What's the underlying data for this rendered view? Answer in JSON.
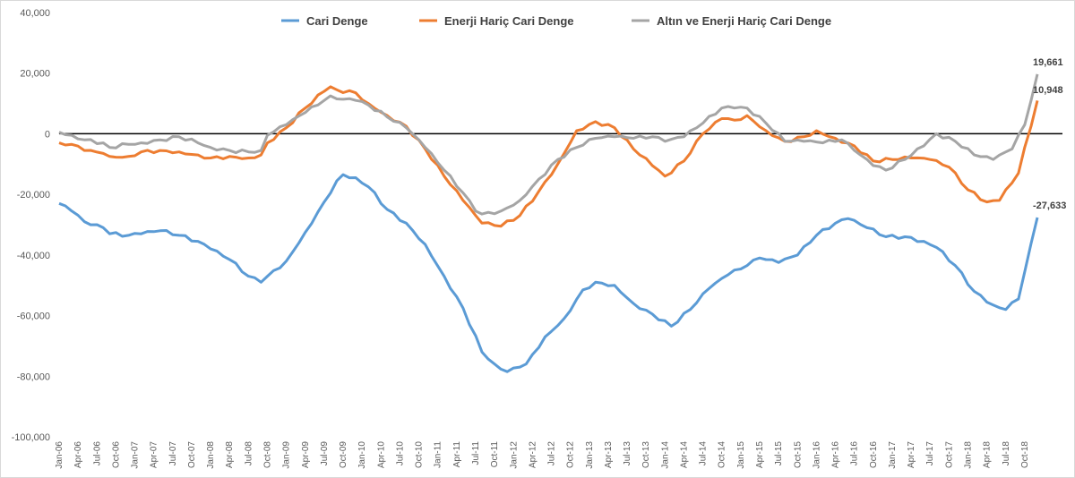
{
  "chart_data": {
    "type": "line",
    "title": "",
    "xlabel": "",
    "ylabel": "",
    "ylim": [
      -100000,
      40000
    ],
    "yticks": [
      40000,
      20000,
      0,
      -20000,
      -40000,
      -60000,
      -80000,
      -100000
    ],
    "ytick_labels": [
      "40,000",
      "20,000",
      "0",
      "-20,000",
      "-40,000",
      "-60,000",
      "-80,000",
      "-100,000"
    ],
    "x_start": "2006-01",
    "x_end": "2018-12",
    "xtick_labels": [
      "Jan-06",
      "Apr-06",
      "Jul-06",
      "Oct-06",
      "Jan-07",
      "Apr-07",
      "Jul-07",
      "Oct-07",
      "Jan-08",
      "Apr-08",
      "Jul-08",
      "Oct-08",
      "Jan-09",
      "Apr-09",
      "Jul-09",
      "Oct-09",
      "Jan-10",
      "Apr-10",
      "Jul-10",
      "Oct-10",
      "Jan-11",
      "Apr-11",
      "Jul-11",
      "Oct-11",
      "Jan-12",
      "Apr-12",
      "Jul-12",
      "Oct-12",
      "Jan-13",
      "Apr-13",
      "Jul-13",
      "Oct-13",
      "Jan-14",
      "Apr-14",
      "Jul-14",
      "Oct-14",
      "Jan-15",
      "Apr-15",
      "Jul-15",
      "Oct-15",
      "Jan-16",
      "Apr-16",
      "Jul-16",
      "Oct-16",
      "Jan-17",
      "Apr-17",
      "Jul-17",
      "Oct-17",
      "Jan-18",
      "Apr-18",
      "Jul-18",
      "Oct-18"
    ],
    "legend_position": "top",
    "grid": false,
    "series": [
      {
        "name": "Cari Denge",
        "color": "#5b9bd5",
        "anchors": [
          [
            "2006-01",
            -23000
          ],
          [
            "2006-03",
            -25500
          ],
          [
            "2006-05",
            -29000
          ],
          [
            "2006-07",
            -30000
          ],
          [
            "2006-08",
            -31000
          ],
          [
            "2006-09",
            -33000
          ],
          [
            "2006-12",
            -33500
          ],
          [
            "2007-02",
            -33000
          ],
          [
            "2007-05",
            -32000
          ],
          [
            "2007-08",
            -33500
          ],
          [
            "2007-11",
            -35500
          ],
          [
            "2008-01",
            -38000
          ],
          [
            "2008-04",
            -41500
          ],
          [
            "2008-07",
            -47000
          ],
          [
            "2008-09",
            -49000
          ],
          [
            "2008-10",
            -47000
          ],
          [
            "2009-01",
            -42000
          ],
          [
            "2009-04",
            -32500
          ],
          [
            "2009-07",
            -22500
          ],
          [
            "2009-09",
            -15500
          ],
          [
            "2009-10",
            -13500
          ],
          [
            "2009-12",
            -14500
          ],
          [
            "2010-02",
            -17500
          ],
          [
            "2010-05",
            -25000
          ],
          [
            "2010-08",
            -29500
          ],
          [
            "2010-11",
            -36500
          ],
          [
            "2011-02",
            -47000
          ],
          [
            "2011-05",
            -57500
          ],
          [
            "2011-08",
            -72000
          ],
          [
            "2011-10",
            -76000
          ],
          [
            "2011-12",
            -78500
          ],
          [
            "2012-02",
            -77000
          ],
          [
            "2012-03",
            -76000
          ],
          [
            "2012-06",
            -67000
          ],
          [
            "2012-09",
            -61000
          ],
          [
            "2012-12",
            -51500
          ],
          [
            "2013-02",
            -49000
          ],
          [
            "2013-05",
            -50000
          ],
          [
            "2013-08",
            -56000
          ],
          [
            "2013-11",
            -59500
          ],
          [
            "2014-02",
            -63500
          ],
          [
            "2014-05",
            -58000
          ],
          [
            "2014-08",
            -51000
          ],
          [
            "2014-11",
            -46500
          ],
          [
            "2015-02",
            -43500
          ],
          [
            "2015-04",
            -41000
          ],
          [
            "2015-07",
            -42500
          ],
          [
            "2015-10",
            -40000
          ],
          [
            "2016-01",
            -33500
          ],
          [
            "2016-04",
            -29500
          ],
          [
            "2016-06",
            -28000
          ],
          [
            "2016-09",
            -31000
          ],
          [
            "2016-12",
            -34000
          ],
          [
            "2017-03",
            -34000
          ],
          [
            "2017-06",
            -35500
          ],
          [
            "2017-08",
            -37500
          ],
          [
            "2017-11",
            -43500
          ],
          [
            "2018-02",
            -52000
          ],
          [
            "2018-05",
            -56500
          ],
          [
            "2018-07",
            -58000
          ],
          [
            "2018-09",
            -54500
          ],
          [
            "2018-12",
            -27633
          ]
        ]
      },
      {
        "name": "Enerji Hariç Cari Denge",
        "color": "#ed7d31",
        "anchors": [
          [
            "2006-01",
            -3000
          ],
          [
            "2006-03",
            -3500
          ],
          [
            "2006-05",
            -5500
          ],
          [
            "2006-08",
            -6500
          ],
          [
            "2006-09",
            -7500
          ],
          [
            "2006-12",
            -7500
          ],
          [
            "2007-02",
            -6000
          ],
          [
            "2007-05",
            -5500
          ],
          [
            "2007-08",
            -6000
          ],
          [
            "2007-11",
            -7000
          ],
          [
            "2008-01",
            -8000
          ],
          [
            "2008-04",
            -7500
          ],
          [
            "2008-07",
            -8000
          ],
          [
            "2008-09",
            -7000
          ],
          [
            "2008-10",
            -3000
          ],
          [
            "2009-01",
            2000
          ],
          [
            "2009-04",
            8500
          ],
          [
            "2009-07",
            14000
          ],
          [
            "2009-08",
            15500
          ],
          [
            "2009-09",
            14500
          ],
          [
            "2009-12",
            13500
          ],
          [
            "2010-02",
            10000
          ],
          [
            "2010-05",
            6000
          ],
          [
            "2010-08",
            2500
          ],
          [
            "2010-11",
            -5000
          ],
          [
            "2011-02",
            -14000
          ],
          [
            "2011-05",
            -22000
          ],
          [
            "2011-07",
            -27000
          ],
          [
            "2011-08",
            -29500
          ],
          [
            "2011-11",
            -30500
          ],
          [
            "2012-02",
            -27000
          ],
          [
            "2012-05",
            -19000
          ],
          [
            "2012-08",
            -10000
          ],
          [
            "2012-11",
            1000
          ],
          [
            "2013-02",
            4000
          ],
          [
            "2013-05",
            2000
          ],
          [
            "2013-08",
            -5000
          ],
          [
            "2013-11",
            -10500
          ],
          [
            "2014-01",
            -14000
          ],
          [
            "2014-04",
            -9000
          ],
          [
            "2014-07",
            0
          ],
          [
            "2014-10",
            5000
          ],
          [
            "2014-12",
            4500
          ],
          [
            "2015-02",
            6000
          ],
          [
            "2015-05",
            1000
          ],
          [
            "2015-08",
            -2500
          ],
          [
            "2015-11",
            -1000
          ],
          [
            "2016-01",
            1000
          ],
          [
            "2016-04",
            -1500
          ],
          [
            "2016-07",
            -4000
          ],
          [
            "2016-10",
            -9000
          ],
          [
            "2017-01",
            -8500
          ],
          [
            "2017-04",
            -8000
          ],
          [
            "2017-07",
            -8500
          ],
          [
            "2017-10",
            -11000
          ],
          [
            "2018-01",
            -18500
          ],
          [
            "2018-04",
            -22500
          ],
          [
            "2018-06",
            -22000
          ],
          [
            "2018-09",
            -13000
          ],
          [
            "2018-12",
            10948
          ]
        ]
      },
      {
        "name": "Altın ve Enerji Hariç Cari Denge",
        "color": "#a5a5a5",
        "anchors": [
          [
            "2006-01",
            500
          ],
          [
            "2006-03",
            -500
          ],
          [
            "2006-05",
            -2000
          ],
          [
            "2006-08",
            -3000
          ],
          [
            "2006-09",
            -4500
          ],
          [
            "2006-12",
            -3500
          ],
          [
            "2007-02",
            -3000
          ],
          [
            "2007-05",
            -2000
          ],
          [
            "2007-08",
            -1000
          ],
          [
            "2007-11",
            -3000
          ],
          [
            "2008-01",
            -4500
          ],
          [
            "2008-04",
            -5500
          ],
          [
            "2008-07",
            -6000
          ],
          [
            "2008-09",
            -5500
          ],
          [
            "2008-10",
            -500
          ],
          [
            "2009-01",
            3000
          ],
          [
            "2009-04",
            7000
          ],
          [
            "2009-07",
            11000
          ],
          [
            "2009-08",
            12500
          ],
          [
            "2009-09",
            11500
          ],
          [
            "2009-12",
            11000
          ],
          [
            "2010-02",
            9500
          ],
          [
            "2010-05",
            5500
          ],
          [
            "2010-08",
            2000
          ],
          [
            "2010-11",
            -4500
          ],
          [
            "2011-02",
            -12000
          ],
          [
            "2011-05",
            -19500
          ],
          [
            "2011-07",
            -25500
          ],
          [
            "2011-08",
            -26500
          ],
          [
            "2011-11",
            -25500
          ],
          [
            "2012-02",
            -22000
          ],
          [
            "2012-05",
            -15000
          ],
          [
            "2012-08",
            -8500
          ],
          [
            "2012-11",
            -4500
          ],
          [
            "2013-02",
            -1500
          ],
          [
            "2013-05",
            -1000
          ],
          [
            "2013-08",
            -1500
          ],
          [
            "2013-11",
            -1000
          ],
          [
            "2014-01",
            -2500
          ],
          [
            "2014-04",
            -1000
          ],
          [
            "2014-07",
            3500
          ],
          [
            "2014-10",
            8500
          ],
          [
            "2014-12",
            8500
          ],
          [
            "2015-02",
            8500
          ],
          [
            "2015-05",
            3500
          ],
          [
            "2015-08",
            -2500
          ],
          [
            "2015-11",
            -2500
          ],
          [
            "2016-02",
            -3000
          ],
          [
            "2016-05",
            -2000
          ],
          [
            "2016-07",
            -5500
          ],
          [
            "2016-10",
            -10500
          ],
          [
            "2016-12",
            -12000
          ],
          [
            "2017-03",
            -8500
          ],
          [
            "2017-06",
            -4000
          ],
          [
            "2017-08",
            0
          ],
          [
            "2017-11",
            -2500
          ],
          [
            "2018-02",
            -7000
          ],
          [
            "2018-05",
            -8500
          ],
          [
            "2018-08",
            -5000
          ],
          [
            "2018-10",
            3000
          ],
          [
            "2018-12",
            19661
          ]
        ]
      }
    ],
    "end_labels": [
      "19,661",
      "10,948",
      "-27,633"
    ]
  }
}
